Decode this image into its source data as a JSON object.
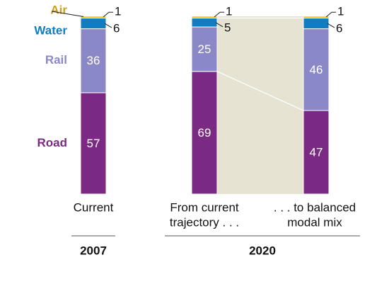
{
  "chart_data": {
    "type": "bar",
    "stacked": true,
    "categories": [
      "Current",
      "From current trajectory . . .",
      ". . . to balanced modal mix"
    ],
    "category_lines": [
      [
        "Current"
      ],
      [
        "From current",
        "trajectory . . ."
      ],
      [
        ". . . to balanced",
        "modal mix"
      ]
    ],
    "groups": [
      {
        "label": "2007",
        "columns": [
          0
        ]
      },
      {
        "label": "2020",
        "columns": [
          1,
          2
        ]
      }
    ],
    "series": [
      {
        "name": "Road",
        "values": [
          57,
          69,
          47
        ],
        "color": "#7b2a83"
      },
      {
        "name": "Rail",
        "values": [
          36,
          25,
          46
        ],
        "color": "#8b88c8"
      },
      {
        "name": "Water",
        "values": [
          6,
          5,
          6
        ],
        "color": "#0f7dc2"
      },
      {
        "name": "Air",
        "values": [
          1,
          1,
          1
        ],
        "color": "#d7b51b"
      }
    ],
    "series_label_colors": {
      "Road": "#7b2a83",
      "Rail": "#8b88c8",
      "Water": "#0f7dc2",
      "Air": "#c9a21a"
    },
    "connector_color": "#e6e3d2",
    "title": "",
    "xlabel": "",
    "ylabel": ""
  }
}
